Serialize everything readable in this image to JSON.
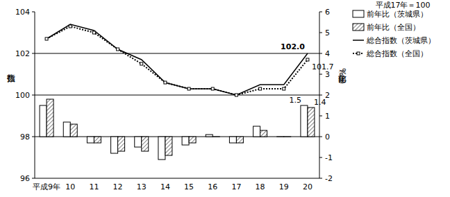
{
  "chart_data": {
    "type": "bar",
    "subtitle": "平成17年＝100",
    "y_label": "指数",
    "y2_label": "前年比（%）",
    "categories": [
      "平成9年",
      "10",
      "11",
      "12",
      "13",
      "14",
      "15",
      "16",
      "17",
      "18",
      "19",
      "20"
    ],
    "series": [
      {
        "name": "前年比（茨城県）",
        "type": "bar",
        "axis": "y2",
        "color": "#ffffff",
        "values": [
          1.5,
          0.7,
          -0.3,
          -0.8,
          -0.5,
          -1.1,
          -0.4,
          0.1,
          -0.3,
          0.5,
          0.0,
          1.5
        ]
      },
      {
        "name": "前年比（全国）",
        "type": "bar",
        "axis": "y2",
        "color": "#808080",
        "values": [
          1.8,
          0.6,
          -0.3,
          -0.7,
          -0.7,
          -0.9,
          -0.3,
          0.0,
          -0.3,
          0.3,
          0.0,
          1.4
        ]
      },
      {
        "name": "総合指数（茨城県）",
        "type": "line",
        "axis": "y",
        "color": "#000000",
        "line_style": "solid",
        "marker": "none",
        "values": [
          102.7,
          103.4,
          103.1,
          102.2,
          101.7,
          100.6,
          100.3,
          100.3,
          100.0,
          100.5,
          100.5,
          102.0
        ]
      },
      {
        "name": "総合指数（全国）",
        "type": "line",
        "axis": "y",
        "color": "#000000",
        "line_style": "dotted",
        "marker": "square",
        "values": [
          102.7,
          103.3,
          103.0,
          102.2,
          101.5,
          100.6,
          100.3,
          100.3,
          100.0,
          100.3,
          100.3,
          101.7
        ]
      }
    ],
    "annotations": [
      {
        "text": "102.0",
        "series": 2,
        "index": 11,
        "value": 102.0
      },
      {
        "text": "101.7",
        "series": 3,
        "index": 11,
        "value": 101.7
      },
      {
        "text": "1.5",
        "series": 0,
        "index": 11,
        "value": 1.5
      },
      {
        "text": "1.4",
        "series": 1,
        "index": 11,
        "value": 1.4
      }
    ],
    "ylim": [
      96,
      104
    ],
    "yticks": [
      96,
      98,
      100,
      102,
      104
    ],
    "y2lim": [
      -2,
      6
    ],
    "y2ticks": [
      -2,
      -1,
      0,
      1,
      2,
      3,
      4,
      5,
      6
    ],
    "grid": true,
    "legend": "right"
  }
}
